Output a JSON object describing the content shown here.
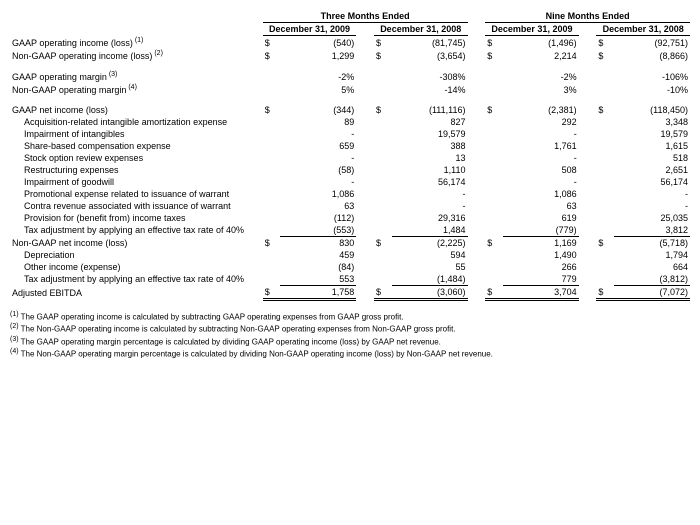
{
  "headers": {
    "group_3m": "Three Months Ended",
    "group_9m": "Nine Months Ended",
    "c1": "December 31, 2009",
    "c2": "December 31, 2008",
    "c3": "December 31, 2009",
    "c4": "December 31, 2008"
  },
  "rows": {
    "gaap_op_inc": {
      "label": "GAAP operating income (loss)",
      "sup": "(1)",
      "d": true,
      "v": [
        "(540)",
        "(81,745)",
        "(1,496)",
        "(92,751)"
      ]
    },
    "nongaap_op_inc": {
      "label": "Non-GAAP operating income (loss)",
      "sup": "(2)",
      "d": true,
      "v": [
        "1,299",
        "(3,654)",
        "2,214",
        "(8,866)"
      ]
    },
    "gaap_margin": {
      "label": "GAAP operating margin",
      "sup": "(3)",
      "v": [
        "-2%",
        "-308%",
        "-2%",
        "-106%"
      ]
    },
    "nongaap_margin": {
      "label": "Non-GAAP operating margin",
      "sup": "(4)",
      "v": [
        "5%",
        "-14%",
        "3%",
        "-10%"
      ]
    },
    "gaap_net": {
      "label": "GAAP net income (loss)",
      "d": true,
      "v": [
        "(344)",
        "(111,116)",
        "(2,381)",
        "(118,450)"
      ]
    },
    "acq_amort": {
      "label": "Acquisition-related intangible amortization expense",
      "indent": true,
      "v": [
        "89",
        "827",
        "292",
        "3,348"
      ]
    },
    "impair_intang": {
      "label": "Impairment of intangibles",
      "indent": true,
      "v": [
        "-",
        "19,579",
        "-",
        "19,579"
      ]
    },
    "sbc": {
      "label": "Share-based compensation expense",
      "indent": true,
      "v": [
        "659",
        "388",
        "1,761",
        "1,615"
      ]
    },
    "stock_review": {
      "label": "Stock option review expenses",
      "indent": true,
      "v": [
        "-",
        "13",
        "-",
        "518"
      ]
    },
    "restructuring": {
      "label": "Restructuring expenses",
      "indent": true,
      "v": [
        "(58)",
        "1,110",
        "508",
        "2,651"
      ]
    },
    "goodwill": {
      "label": "Impairment of goodwill",
      "indent": true,
      "v": [
        "-",
        "56,174",
        "-",
        "56,174"
      ]
    },
    "promo_warrant": {
      "label": "Promotional expense related to issuance of warrant",
      "indent": true,
      "v": [
        "1,086",
        "-",
        "1,086",
        "-"
      ]
    },
    "contra_rev": {
      "label": "Contra revenue associated with issuance of warrant",
      "indent": true,
      "v": [
        "63",
        "-",
        "63",
        "-"
      ]
    },
    "provision": {
      "label": "Provision for (benefit from) income taxes",
      "indent": true,
      "v": [
        "(112)",
        "29,316",
        "619",
        "25,035"
      ]
    },
    "tax_adj1": {
      "label": "Tax adjustment by applying an effective tax rate of 40%",
      "indent": true,
      "v": [
        "(553)",
        "1,484",
        "(779)",
        "3,812"
      ],
      "underline": true
    },
    "nongaap_net": {
      "label": "Non-GAAP net income (loss)",
      "d": true,
      "v": [
        "830",
        "(2,225)",
        "1,169",
        "(5,718)"
      ]
    },
    "depreciation": {
      "label": "Depreciation",
      "indent": true,
      "v": [
        "459",
        "594",
        "1,490",
        "1,794"
      ]
    },
    "other_inc": {
      "label": "Other income (expense)",
      "indent": true,
      "v": [
        "(84)",
        "55",
        "266",
        "664"
      ]
    },
    "tax_adj2": {
      "label": "Tax adjustment by applying an effective tax rate of 40%",
      "indent": true,
      "v": [
        "553",
        "(1,484)",
        "779",
        "(3,812)"
      ],
      "underline": true
    },
    "adj_ebitda": {
      "label": "Adjusted EBITDA",
      "d": true,
      "v": [
        "1,758",
        "(3,060)",
        "3,704",
        "(7,072)"
      ],
      "dbl": true
    }
  },
  "footnotes": {
    "f1": "The GAAP operating income is calculated by subtracting GAAP operating expenses from GAAP gross profit.",
    "f2": "The Non-GAAP operating income is calculated by subtracting Non-GAAP operating expenses from Non-GAAP gross profit.",
    "f3": "The GAAP operating margin percentage is calculated by dividing GAAP operating income (loss) by GAAP net revenue.",
    "f4": "The Non-GAAP operating margin percentage is calculated by dividing Non-GAAP operating income (loss) by Non-GAAP net revenue."
  },
  "styling": {
    "font_family": "Arial",
    "font_size_pt": 9,
    "footnote_size_pt": 8,
    "text_color": "#000000",
    "background": "#ffffff",
    "border_color": "#000000"
  }
}
